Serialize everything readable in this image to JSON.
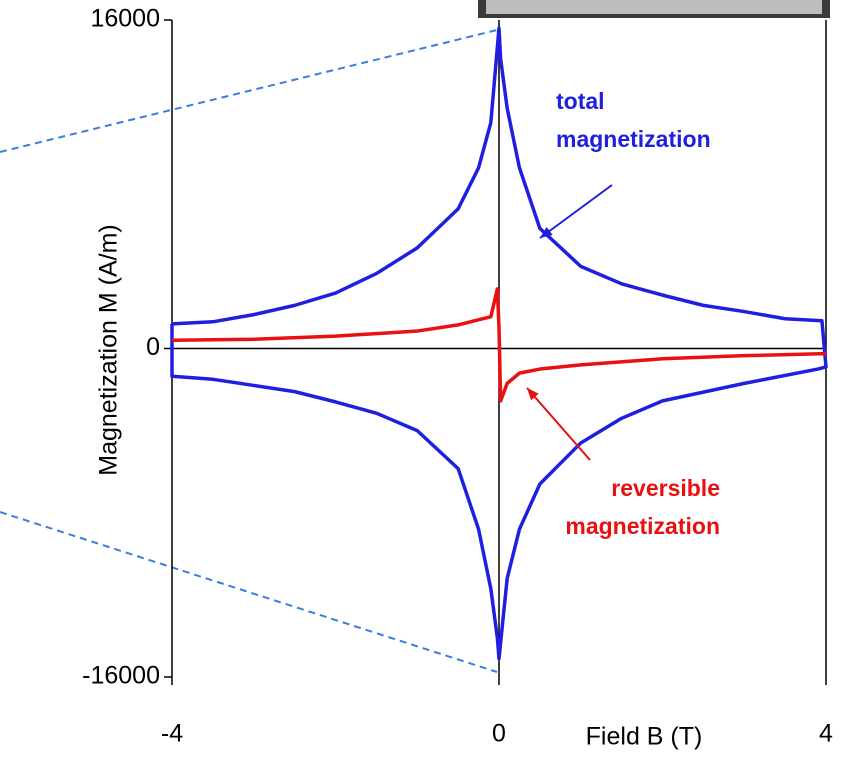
{
  "chart_data": {
    "type": "line",
    "ylabel": "Magnetization M (A/m)",
    "xlabel": "Field B (T)",
    "xlim": [
      -4,
      4
    ],
    "ylim": [
      -16000,
      16000
    ],
    "xticks": [
      -4,
      0,
      4
    ],
    "yticks": [
      -16000,
      0,
      16000
    ],
    "series": [
      {
        "color": "#1f1fe0",
        "x": [
          -4,
          -3.5,
          -3,
          -2.5,
          -2,
          -1.5,
          -1,
          -0.5,
          -0.25,
          -0.1,
          0,
          0.02,
          0.1,
          0.25,
          0.5,
          1,
          1.5,
          2,
          2.5,
          3,
          3.5,
          3.95,
          4,
          3.9,
          3,
          2,
          1.5,
          1,
          0.5,
          0.25,
          0.1,
          0,
          -0.02,
          -0.1,
          -0.25,
          -0.5,
          -1,
          -1.5,
          -2,
          -2.5,
          -3,
          -3.5,
          -4,
          -4
        ],
        "values": [
          1200,
          1300,
          1650,
          2100,
          2700,
          3650,
          4900,
          6800,
          8800,
          11000,
          15600,
          14100,
          11700,
          8800,
          5850,
          4000,
          3150,
          2600,
          2100,
          1800,
          1450,
          1350,
          -900,
          -1000,
          -1700,
          -2550,
          -3400,
          -4600,
          -6600,
          -8800,
          -11200,
          -15100,
          -14100,
          -11700,
          -8800,
          -5850,
          -4000,
          -3150,
          -2600,
          -2100,
          -1800,
          -1500,
          -1350,
          1200
        ]
      },
      {
        "color": "#e81010",
        "x": [
          -4,
          -3,
          -2,
          -1,
          -0.5,
          -0.1,
          -0.02,
          0,
          0.02,
          0.1,
          0.25,
          0.5,
          1,
          2,
          3,
          4
        ],
        "values": [
          400,
          450,
          600,
          850,
          1150,
          1550,
          2900,
          1000,
          -2550,
          -1700,
          -1200,
          -1000,
          -800,
          -500,
          -350,
          -250
        ]
      }
    ],
    "annotations": [
      {
        "lines": [
          "total",
          "magnetization"
        ],
        "color": "#1f1fe0"
      },
      {
        "lines": [
          "reversible",
          "magnetization"
        ],
        "color": "#e81010"
      }
    ]
  }
}
